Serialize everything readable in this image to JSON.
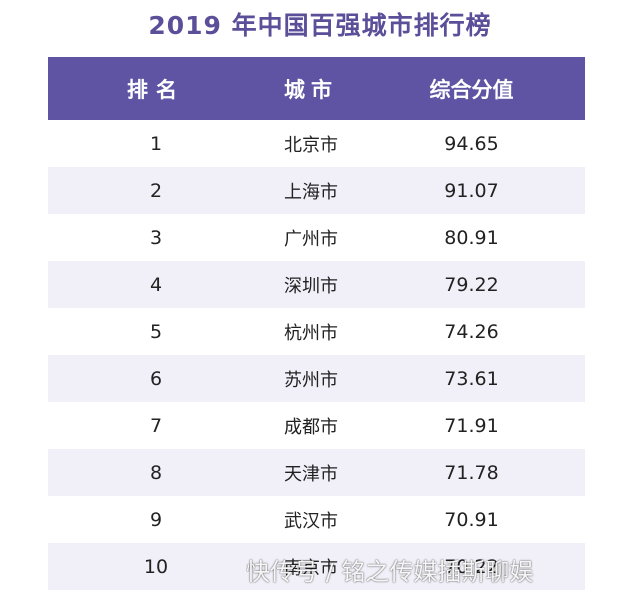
{
  "title": "2019 年中国百强城市排行榜",
  "headers": {
    "rank": "排名",
    "city": "城市",
    "score": "综合分值"
  },
  "rows": [
    {
      "rank": "1",
      "city": "北京市",
      "score": "94.65"
    },
    {
      "rank": "2",
      "city": "上海市",
      "score": "91.07"
    },
    {
      "rank": "3",
      "city": "广州市",
      "score": "80.91"
    },
    {
      "rank": "4",
      "city": "深圳市",
      "score": "79.22"
    },
    {
      "rank": "5",
      "city": "杭州市",
      "score": "74.26"
    },
    {
      "rank": "6",
      "city": "苏州市",
      "score": "73.61"
    },
    {
      "rank": "7",
      "city": "成都市",
      "score": "71.91"
    },
    {
      "rank": "8",
      "city": "天津市",
      "score": "71.78"
    },
    {
      "rank": "9",
      "city": "武汉市",
      "score": "70.91"
    },
    {
      "rank": "10",
      "city": "南京市",
      "score": "70.22"
    }
  ],
  "watermark": "快传号 / 铭之传媒插斯聊娱",
  "colors": {
    "header_bg": "#5e54a3",
    "title": "#5b4f9a",
    "stripe": "#f1f0f8"
  }
}
